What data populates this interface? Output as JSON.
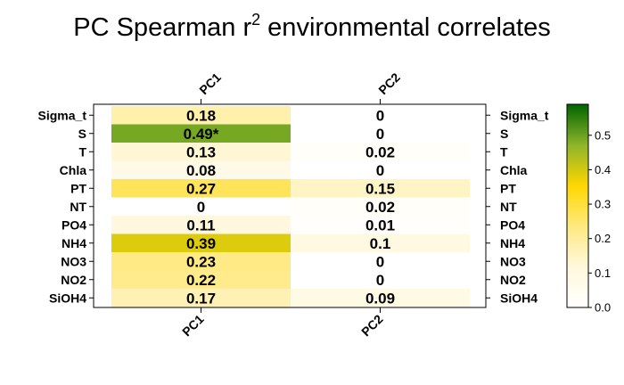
{
  "chart_data": {
    "type": "heatmap",
    "title_main": "PC Spearman r",
    "title_sup": "2",
    "title_rest": " environmental correlates",
    "columns": [
      "PC1",
      "PC2"
    ],
    "rows": [
      "Sigma_t",
      "S",
      "T",
      "Chla",
      "PT",
      "NT",
      "PO4",
      "NH4",
      "NO3",
      "NO2",
      "SiOH4"
    ],
    "values": [
      [
        0.18,
        0
      ],
      [
        0.49,
        0
      ],
      [
        0.13,
        0.02
      ],
      [
        0.08,
        0
      ],
      [
        0.27,
        0.15
      ],
      [
        0,
        0.02
      ],
      [
        0.11,
        0.01
      ],
      [
        0.39,
        0.1
      ],
      [
        0.23,
        0
      ],
      [
        0.22,
        0
      ],
      [
        0.17,
        0.09
      ]
    ],
    "cell_labels": [
      [
        "0.18",
        "0"
      ],
      [
        "0.49*",
        "0"
      ],
      [
        "0.13",
        "0.02"
      ],
      [
        "0.08",
        "0"
      ],
      [
        "0.27",
        "0.15"
      ],
      [
        "0",
        "0.02"
      ],
      [
        "0.11",
        "0.01"
      ],
      [
        "0.39",
        "0.1"
      ],
      [
        "0.23",
        "0"
      ],
      [
        "0.22",
        "0"
      ],
      [
        "0.17",
        "0.09"
      ]
    ],
    "colorbar": {
      "min": 0,
      "max": 0.59,
      "ticks": [
        0.0,
        0.1,
        0.2,
        0.3,
        0.4,
        0.5
      ],
      "tick_labels": [
        "0.0",
        "0.1",
        "0.2",
        "0.3",
        "0.4",
        "0.5"
      ],
      "colors": [
        "#ffffff",
        "#fff8dc",
        "#ffe980",
        "#ffd700",
        "#8db42a",
        "#006400"
      ]
    },
    "grid": false,
    "legend_position": "right"
  }
}
